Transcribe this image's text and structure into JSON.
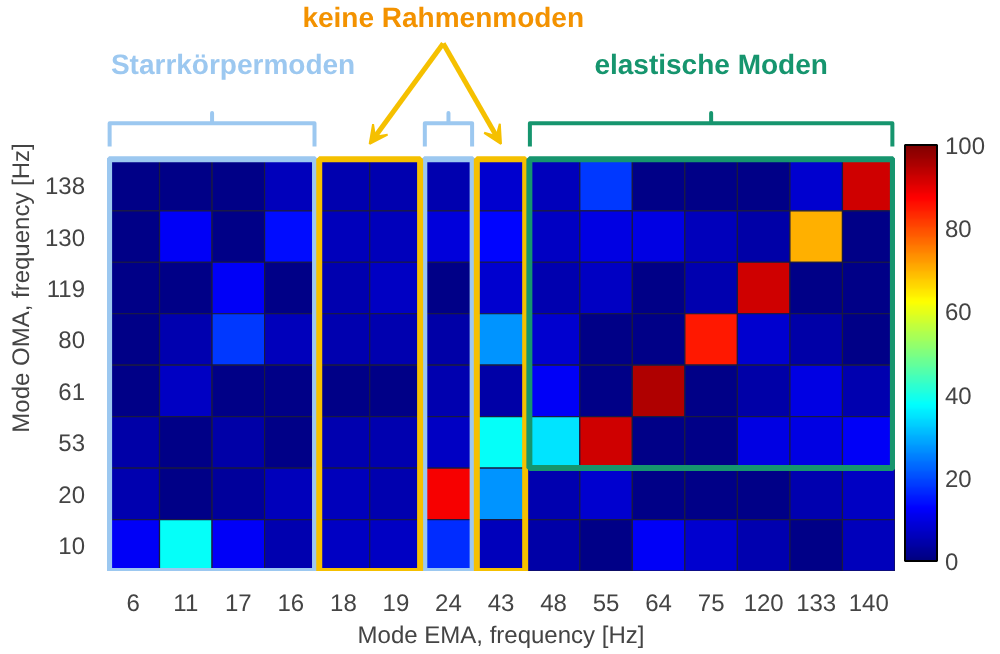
{
  "chart_data": {
    "type": "heatmap",
    "xlabel": "Mode EMA, frequency [Hz]",
    "ylabel": "Mode OMA, frequency [Hz]",
    "categories": [
      "6",
      "11",
      "17",
      "16",
      "18",
      "19",
      "24",
      "43",
      "48",
      "55",
      "64",
      "75",
      "120",
      "133",
      "140"
    ],
    "y_categories": [
      "138",
      "130",
      "119",
      "80",
      "61",
      "53",
      "20",
      "10"
    ],
    "cells": [
      [
        1,
        1,
        1,
        6,
        5,
        5,
        5,
        8,
        6,
        18,
        1,
        1,
        1,
        8,
        92
      ],
      [
        1,
        12,
        1,
        14,
        6,
        6,
        9,
        13,
        7,
        10,
        10,
        6,
        4,
        70,
        1
      ],
      [
        1,
        1,
        12,
        1,
        5,
        7,
        1,
        8,
        5,
        7,
        1,
        5,
        92,
        1,
        1
      ],
      [
        1,
        5,
        18,
        6,
        5,
        5,
        4,
        27,
        8,
        1,
        1,
        85,
        8,
        4,
        1
      ],
      [
        1,
        7,
        1,
        1,
        1,
        1,
        5,
        4,
        12,
        1,
        95,
        1,
        4,
        10,
        5
      ],
      [
        4,
        1,
        4,
        1,
        5,
        5,
        7,
        38,
        35,
        92,
        1,
        1,
        10,
        10,
        12
      ],
      [
        5,
        1,
        3,
        6,
        6,
        5,
        88,
        27,
        5,
        8,
        1,
        1,
        1,
        5,
        7
      ],
      [
        12,
        38,
        12,
        5,
        7,
        7,
        17,
        6,
        4,
        1,
        12,
        8,
        5,
        1,
        6
      ]
    ],
    "clim": [
      0,
      100
    ],
    "cticks": [
      0,
      20,
      40,
      60,
      80,
      100
    ],
    "annotations": [
      "Starrkörpermoden",
      "keine Rahmenmoden",
      "elastische Moden"
    ]
  }
}
